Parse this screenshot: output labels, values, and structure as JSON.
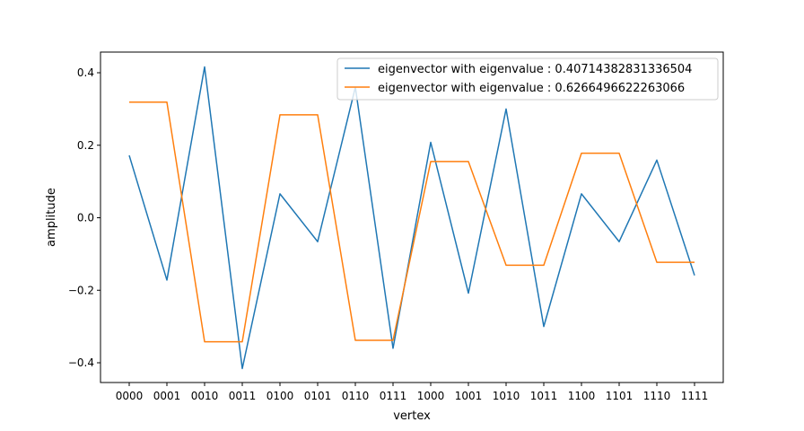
{
  "chart_data": {
    "type": "line",
    "title": "",
    "xlabel": "vertex",
    "ylabel": "amplitude",
    "categories": [
      "0000",
      "0001",
      "0010",
      "0011",
      "0100",
      "0101",
      "0110",
      "0111",
      "1000",
      "1001",
      "1010",
      "1011",
      "1100",
      "1101",
      "1110",
      "1111"
    ],
    "ylim": [
      -0.45,
      0.45
    ],
    "yticks": [
      -0.4,
      -0.2,
      0.0,
      0.2,
      0.4
    ],
    "ytick_labels": [
      "−0.4",
      "−0.2",
      "0.0",
      "0.2",
      "0.4"
    ],
    "grid": false,
    "legend_position": "top-right",
    "series": [
      {
        "name": "eigenvector with eigenvalue : 0.40714382831336504",
        "color": "#1f77b4",
        "values": [
          0.172,
          -0.172,
          0.416,
          -0.416,
          0.066,
          -0.066,
          0.36,
          -0.36,
          0.208,
          -0.208,
          0.3,
          -0.3,
          0.066,
          -0.066,
          0.159,
          -0.159
        ]
      },
      {
        "name": "eigenvector with eigenvalue : 0.6266496622263066",
        "color": "#ff7f0e",
        "values": [
          0.319,
          0.319,
          -0.342,
          -0.342,
          0.284,
          0.284,
          -0.338,
          -0.338,
          0.155,
          0.155,
          -0.131,
          -0.131,
          0.178,
          0.178,
          -0.123,
          -0.123
        ]
      }
    ]
  }
}
